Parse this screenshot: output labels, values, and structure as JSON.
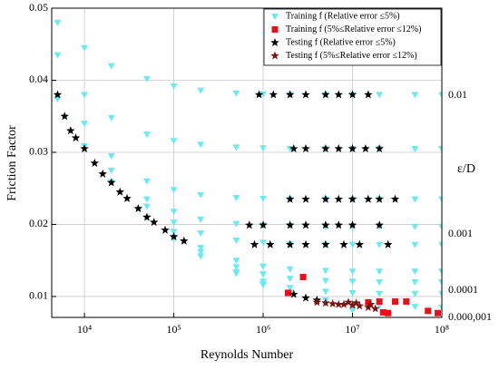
{
  "chart_data": {
    "type": "scatter",
    "x_label": "Reynolds Number",
    "y_label": "Friction Factor",
    "xscale": "log",
    "xlim": [
      4300,
      100000000
    ],
    "xticks": [
      {
        "value": 10000,
        "label": "10⁴"
      },
      {
        "value": 100000,
        "label": "10⁵"
      },
      {
        "value": 1000000,
        "label": "10⁶"
      },
      {
        "value": 10000000,
        "label": "10⁷"
      },
      {
        "value": 100000000,
        "label": "10⁸"
      }
    ],
    "ylim": [
      0.0071,
      0.05
    ],
    "yticks": [
      0.01,
      0.02,
      0.03,
      0.04,
      0.05
    ],
    "grid": true,
    "legend": "upper right",
    "right_axis_title": "ε/D",
    "right_labels": [
      "0.01",
      "0.001",
      "0.0001",
      "0.000,001"
    ],
    "series": [
      {
        "name": "Training f (Relative error ≤5%)",
        "color": "#6fe8ee",
        "marker": "triangle-down",
        "x": [
          5000,
          10000,
          20000,
          50000,
          100000,
          200000,
          500000,
          1000000,
          2000000,
          5000000,
          10000000,
          20000000,
          50000000,
          100000000,
          5000,
          10000,
          20000,
          50000,
          100000,
          200000,
          500000,
          1000000,
          2000000,
          5000000,
          10000000,
          20000000,
          50000000,
          100000000,
          10000,
          20000,
          50000,
          100000,
          200000,
          500000,
          1000000,
          2000000,
          5000000,
          10000000,
          20000000,
          50000000,
          100000000,
          20000,
          50000,
          100000,
          200000,
          500000,
          1000000,
          2000000,
          5000000,
          10000000,
          20000000,
          50000000,
          100000000,
          50000,
          100000,
          200000,
          500000,
          1000000,
          2000000,
          5000000,
          10000000,
          20000000,
          50000000,
          100000000,
          100000,
          200000,
          500000,
          1000000,
          2000000,
          5000000,
          10000000,
          20000000,
          50000000,
          100000000,
          200000,
          500000,
          1000000,
          2000000,
          5000000,
          10000000,
          20000000,
          50000000,
          100000000,
          500000,
          1000000,
          2000000,
          5000000,
          10000000,
          20000000,
          50000000,
          100000000,
          1000000,
          2000000,
          5000000,
          10000000,
          20000000,
          50000000,
          100000000,
          5000,
          10000,
          20000,
          50000,
          100000,
          200000,
          500000,
          1000000,
          2000000,
          5000000,
          10000000
        ],
        "values": [
          0.048,
          0.0445,
          0.042,
          0.0402,
          0.0392,
          0.0386,
          0.0382,
          0.0381,
          0.038,
          0.038,
          0.038,
          0.038,
          0.038,
          0.038,
          0.0435,
          0.038,
          0.0348,
          0.0325,
          0.0316,
          0.0311,
          0.0307,
          0.0306,
          0.0305,
          0.0305,
          0.0305,
          0.0305,
          0.0305,
          0.0305,
          0.034,
          0.0295,
          0.026,
          0.0248,
          0.0241,
          0.0237,
          0.0236,
          0.0235,
          0.0235,
          0.0235,
          0.0235,
          0.0235,
          0.0235,
          0.0275,
          0.0235,
          0.0218,
          0.0207,
          0.0201,
          0.0199,
          0.0198,
          0.0197,
          0.0197,
          0.0197,
          0.0197,
          0.0197,
          0.0225,
          0.0203,
          0.0188,
          0.0178,
          0.0175,
          0.0173,
          0.0172,
          0.0172,
          0.0172,
          0.0172,
          0.0172,
          0.019,
          0.0168,
          0.015,
          0.0142,
          0.0138,
          0.0136,
          0.0135,
          0.0135,
          0.0135,
          0.0135,
          0.0162,
          0.0141,
          0.0131,
          0.0125,
          0.0122,
          0.0121,
          0.012,
          0.012,
          0.012,
          0.0134,
          0.0121,
          0.0112,
          0.0107,
          0.0105,
          0.0104,
          0.0104,
          0.0104,
          0.0117,
          0.0106,
          0.0095,
          0.009,
          0.0087,
          0.0086,
          0.0085,
          0.0374,
          0.0309,
          0.0259,
          0.0209,
          0.018,
          0.0156,
          0.0132,
          0.0116,
          0.0104,
          0.009,
          0.0081
        ]
      },
      {
        "name": "Training f (5%≤Relative error ≤12%)",
        "color": "#e8101a",
        "marker": "square",
        "x": [
          1900000,
          2800000,
          15000000,
          20000000,
          30000000,
          40000000,
          22000000,
          25000000,
          70000000,
          90000000
        ],
        "values": [
          0.0105,
          0.0127,
          0.0092,
          0.0093,
          0.0093,
          0.0093,
          0.0078,
          0.0077,
          0.008,
          0.0077
        ]
      },
      {
        "name": "Testing f (Relative error ≤5%)",
        "color": "#000000",
        "marker": "star",
        "x": [
          5000,
          6000,
          7000,
          8000,
          10000,
          13000,
          16000,
          20000,
          25000,
          30000,
          40000,
          50000,
          60000,
          80000,
          100000,
          130000,
          900000,
          1300000,
          2000000,
          3000000,
          5000000,
          7000000,
          10000000,
          15000000,
          2200000,
          3000000,
          5000000,
          7000000,
          10000000,
          14000000,
          20000000,
          2000000,
          3000000,
          5000000,
          7000000,
          10000000,
          15000000,
          20000000,
          30000000,
          700000,
          1000000,
          2000000,
          3000000,
          5000000,
          7000000,
          10000000,
          20000000,
          800000,
          1200000,
          2000000,
          3000000,
          5000000,
          8000000,
          12000000,
          25000000,
          2200000,
          3000000,
          4000000
        ],
        "values": [
          0.038,
          0.035,
          0.033,
          0.032,
          0.0305,
          0.0285,
          0.027,
          0.0258,
          0.0245,
          0.0236,
          0.0222,
          0.021,
          0.0203,
          0.0192,
          0.0183,
          0.0177,
          0.038,
          0.038,
          0.038,
          0.038,
          0.038,
          0.038,
          0.038,
          0.038,
          0.0305,
          0.0305,
          0.0305,
          0.0305,
          0.0305,
          0.0305,
          0.0305,
          0.0235,
          0.0235,
          0.0235,
          0.0235,
          0.0235,
          0.0235,
          0.0235,
          0.0235,
          0.0199,
          0.0199,
          0.0199,
          0.0199,
          0.0199,
          0.0199,
          0.0199,
          0.0199,
          0.0172,
          0.0172,
          0.0172,
          0.0172,
          0.0172,
          0.0172,
          0.0172,
          0.0172,
          0.0103,
          0.0098,
          0.0095
        ]
      },
      {
        "name": "Testing f (5%≤Relative error ≤12%)",
        "color": "#7a1414",
        "marker": "star",
        "x": [
          4000000,
          5000000,
          6000000,
          7000000,
          8000000,
          10000000,
          12000000,
          15000000,
          18000000,
          16000000,
          9000000,
          11000000
        ],
        "values": [
          0.0092,
          0.0091,
          0.009,
          0.0089,
          0.0089,
          0.0088,
          0.0087,
          0.0085,
          0.0083,
          0.0089,
          0.0092,
          0.0091
        ]
      }
    ]
  }
}
